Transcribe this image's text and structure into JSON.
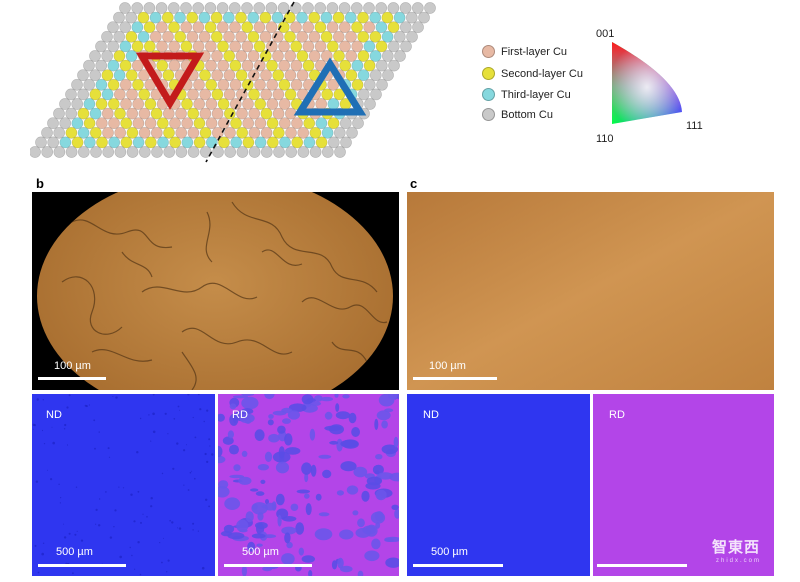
{
  "panel_a": {
    "legend": [
      {
        "label": "First-layer Cu",
        "color": "#e7b9a4"
      },
      {
        "label": "Second-layer Cu",
        "color": "#e6e03a"
      },
      {
        "label": "Third-layer Cu",
        "color": "#86d8de"
      },
      {
        "label": "Bottom Cu",
        "color": "#c9c9c9"
      }
    ],
    "triangle_left_color": "#c31b1b",
    "triangle_right_color": "#1f6fb5"
  },
  "ipf": {
    "label_top": "001",
    "label_left": "110",
    "label_right": "111"
  },
  "panel_b": {
    "letter": "b",
    "optical_scale": "100 µm",
    "map_nd_label": "ND",
    "map_nd_scale": "500 µm",
    "map_rd_label": "RD",
    "map_rd_scale": "500 µm"
  },
  "panel_c": {
    "letter": "c",
    "optical_scale": "100 µm",
    "map_nd_label": "ND",
    "map_nd_scale": "500 µm",
    "map_rd_label": "RD"
  },
  "watermark": {
    "text": "智東西",
    "sub": "zhidx.com"
  },
  "colors": {
    "optical_b": "#b9803e",
    "optical_c": "#c98a48",
    "nd_blue": "#2f36f0",
    "rd_magenta": "#b345e8"
  }
}
